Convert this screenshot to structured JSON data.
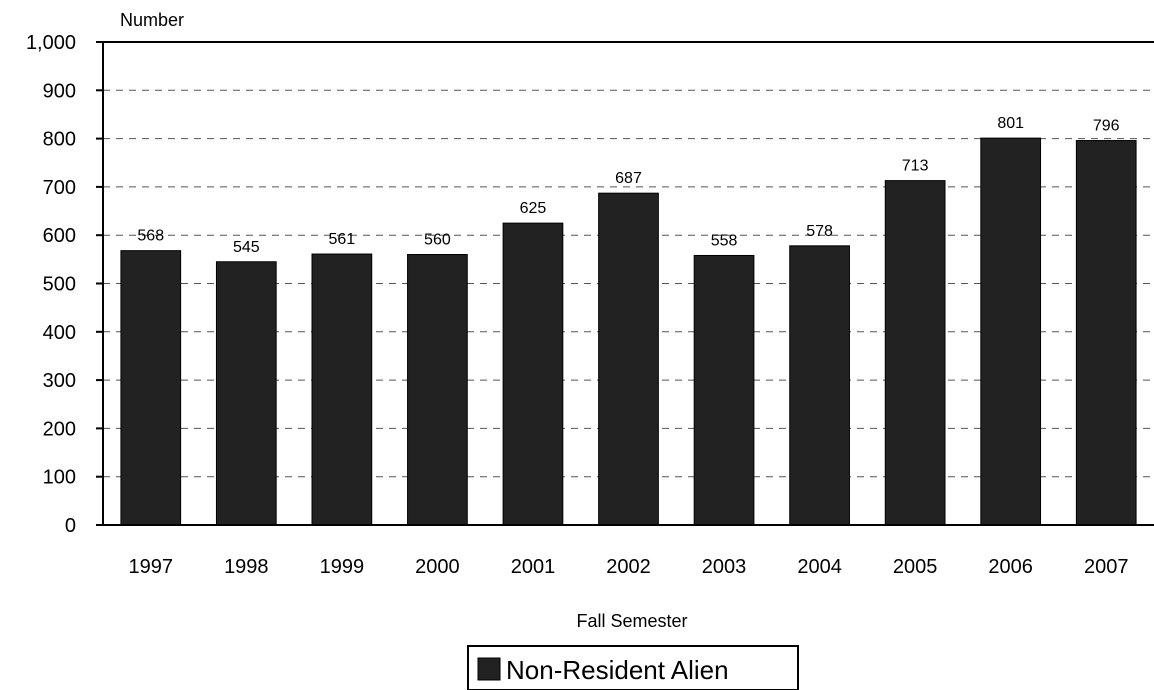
{
  "chart_data": {
    "type": "bar",
    "categories": [
      "1997",
      "1998",
      "1999",
      "2000",
      "2001",
      "2002",
      "2003",
      "2004",
      "2005",
      "2006",
      "2007"
    ],
    "series": [
      {
        "name": "Non-Resident Alien",
        "values": [
          568,
          545,
          561,
          560,
          625,
          687,
          558,
          578,
          713,
          801,
          796
        ]
      }
    ],
    "data_labels": [
      "568",
      "545",
      "561",
      "560",
      "625",
      "687",
      "558",
      "578",
      "713",
      "801",
      "796"
    ],
    "ylabel": "Number",
    "xlabel": "Fall Semester",
    "ylim": [
      0,
      1000
    ],
    "yticks": [
      0,
      100,
      200,
      300,
      400,
      500,
      600,
      700,
      800,
      900,
      1000
    ],
    "ytick_labels": [
      "0",
      "100",
      "200",
      "300",
      "400",
      "500",
      "600",
      "700",
      "800",
      "900",
      "1,000"
    ],
    "grid": "horizontal dashed",
    "legend_position": "bottom-center",
    "colors": {
      "bar": "#222222",
      "grid": "#555555",
      "axis": "#000000"
    }
  }
}
